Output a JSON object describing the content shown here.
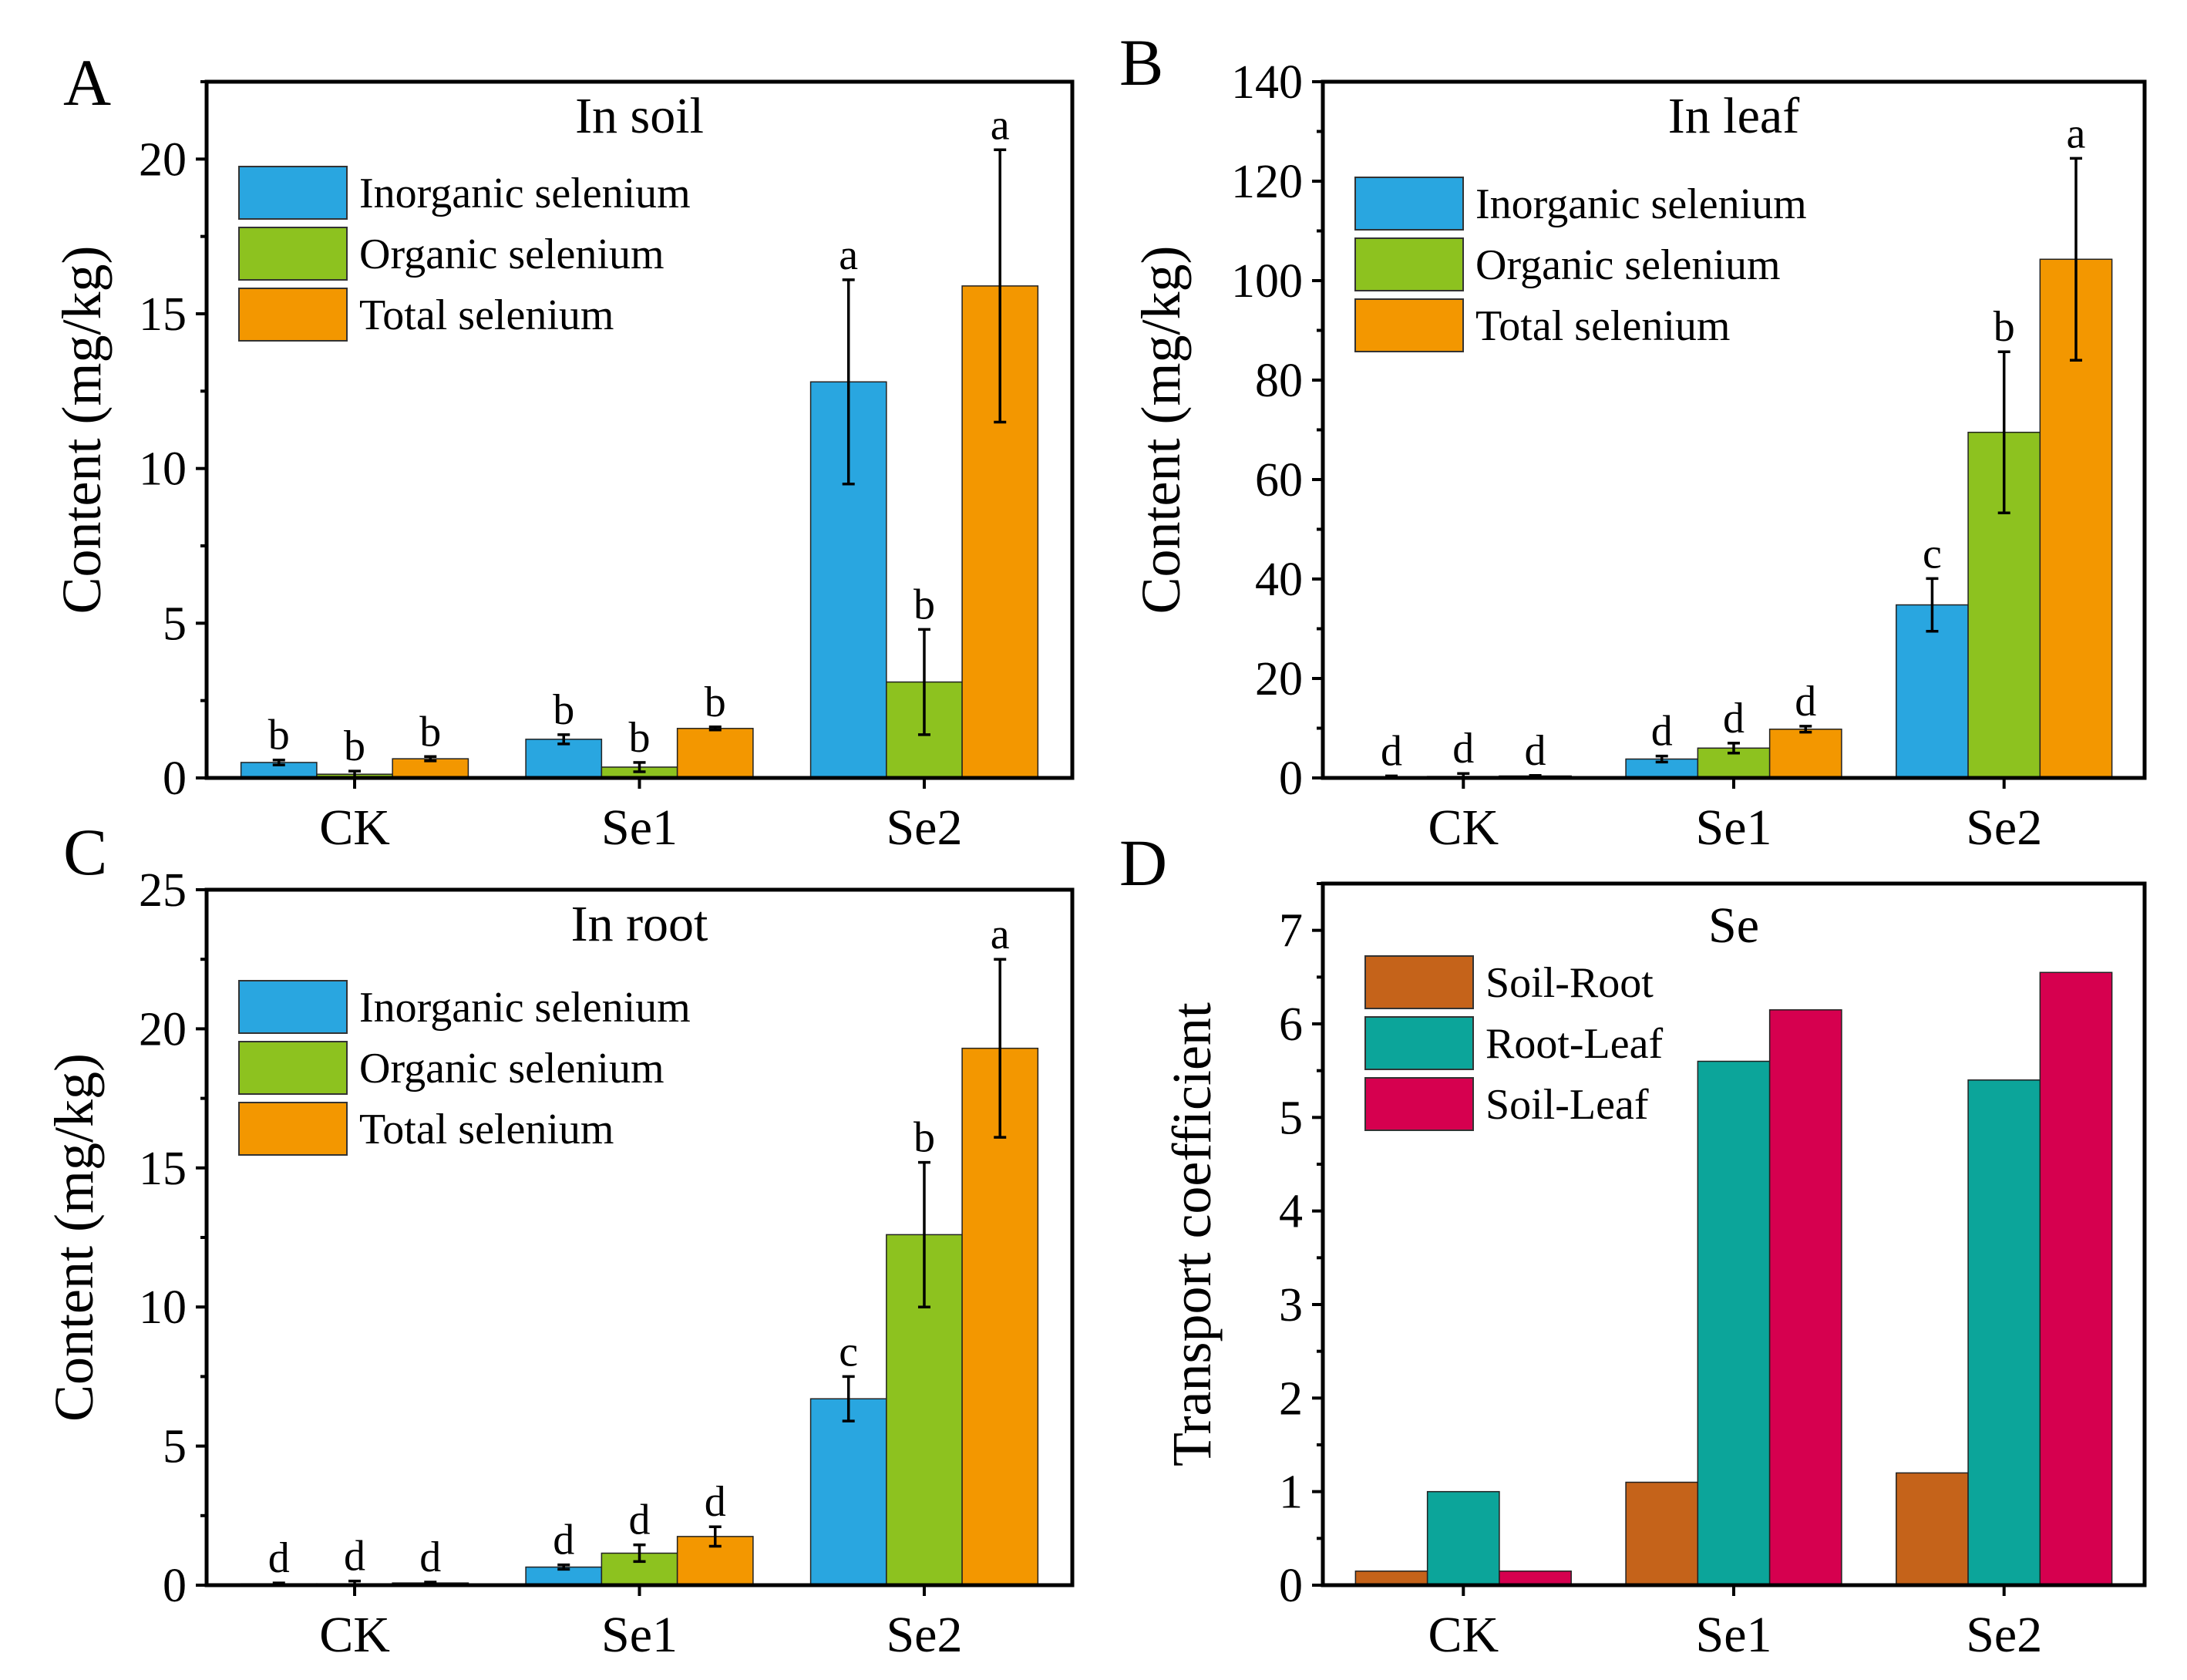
{
  "chart_data": [
    {
      "type": "bar",
      "panel": "A",
      "title": "In soil",
      "ylabel": "Content (mg/kg)",
      "xlabel": "",
      "categories": [
        "CK",
        "Se1",
        "Se2"
      ],
      "ylim": [
        0,
        22.5
      ],
      "yticks": [
        0,
        5,
        10,
        15,
        20
      ],
      "series": [
        {
          "name": "Inorganic selenium",
          "color": "#29a6e0",
          "values": [
            0.5,
            1.25,
            12.8
          ],
          "errors": [
            0.08,
            0.15,
            3.3
          ],
          "labels": [
            "b",
            "b",
            "a"
          ]
        },
        {
          "name": "Organic selenium",
          "color": "#8dc21f",
          "values": [
            0.12,
            0.35,
            3.1
          ],
          "errors": [
            0.1,
            0.15,
            1.7
          ],
          "labels": [
            "b",
            "b",
            "b"
          ]
        },
        {
          "name": "Total selenium",
          "color": "#f39700",
          "values": [
            0.62,
            1.6,
            15.9
          ],
          "errors": [
            0.07,
            0.05,
            4.4
          ],
          "labels": [
            "b",
            "b",
            "a"
          ]
        }
      ],
      "legend": "upper-left"
    },
    {
      "type": "bar",
      "panel": "B",
      "title": "In leaf",
      "ylabel": "Content (mg/kg)",
      "xlabel": "",
      "categories": [
        "CK",
        "Se1",
        "Se2"
      ],
      "ylim": [
        0,
        140
      ],
      "yticks": [
        0,
        20,
        40,
        60,
        80,
        100,
        120,
        140
      ],
      "series": [
        {
          "name": "Inorganic selenium",
          "color": "#29a6e0",
          "values": [
            0.2,
            3.8,
            34.8
          ],
          "errors": [
            0.2,
            0.6,
            5.3
          ],
          "labels": [
            "d",
            "d",
            "c"
          ]
        },
        {
          "name": "Organic selenium",
          "color": "#8dc21f",
          "values": [
            0.3,
            6.0,
            69.5
          ],
          "errors": [
            0.6,
            1.0,
            16.2
          ],
          "labels": [
            "d",
            "d",
            "b"
          ]
        },
        {
          "name": "Total selenium",
          "color": "#f39700",
          "values": [
            0.4,
            9.8,
            104.3
          ],
          "errors": [
            0.1,
            0.6,
            20.3
          ],
          "labels": [
            "d",
            "d",
            "a"
          ]
        }
      ],
      "legend": "upper-left"
    },
    {
      "type": "bar",
      "panel": "C",
      "title": "In root",
      "ylabel": "Content (mg/kg)",
      "xlabel": "",
      "categories": [
        "CK",
        "Se1",
        "Se2"
      ],
      "ylim": [
        0,
        25
      ],
      "yticks": [
        0,
        5,
        10,
        15,
        20,
        25
      ],
      "series": [
        {
          "name": "Inorganic selenium",
          "color": "#29a6e0",
          "values": [
            0.05,
            0.65,
            6.7
          ],
          "errors": [
            0.03,
            0.08,
            0.8
          ],
          "labels": [
            "d",
            "d",
            "c"
          ]
        },
        {
          "name": "Organic selenium",
          "color": "#8dc21f",
          "values": [
            0.05,
            1.15,
            12.6
          ],
          "errors": [
            0.1,
            0.3,
            2.6
          ],
          "labels": [
            "d",
            "d",
            "b"
          ]
        },
        {
          "name": "Total selenium",
          "color": "#f39700",
          "values": [
            0.08,
            1.75,
            19.3
          ],
          "errors": [
            0.03,
            0.35,
            3.2
          ],
          "labels": [
            "d",
            "d",
            "a"
          ]
        }
      ],
      "legend": "upper-left"
    },
    {
      "type": "bar",
      "panel": "D",
      "title": "Se",
      "ylabel": "Transport coefficient",
      "xlabel": "",
      "categories": [
        "CK",
        "Se1",
        "Se2"
      ],
      "ylim": [
        0,
        7.5
      ],
      "yticks": [
        0,
        1,
        2,
        3,
        4,
        5,
        6,
        7
      ],
      "series": [
        {
          "name": "Soil-Root",
          "color": "#c5631a",
          "values": [
            0.15,
            1.1,
            1.2
          ]
        },
        {
          "name": "Root-Leaf",
          "color": "#0ca59a",
          "values": [
            1.0,
            5.6,
            5.4
          ]
        },
        {
          "name": "Soil-Leaf",
          "color": "#d6004f",
          "values": [
            0.15,
            6.15,
            6.55
          ]
        }
      ],
      "legend": "upper-left"
    }
  ]
}
